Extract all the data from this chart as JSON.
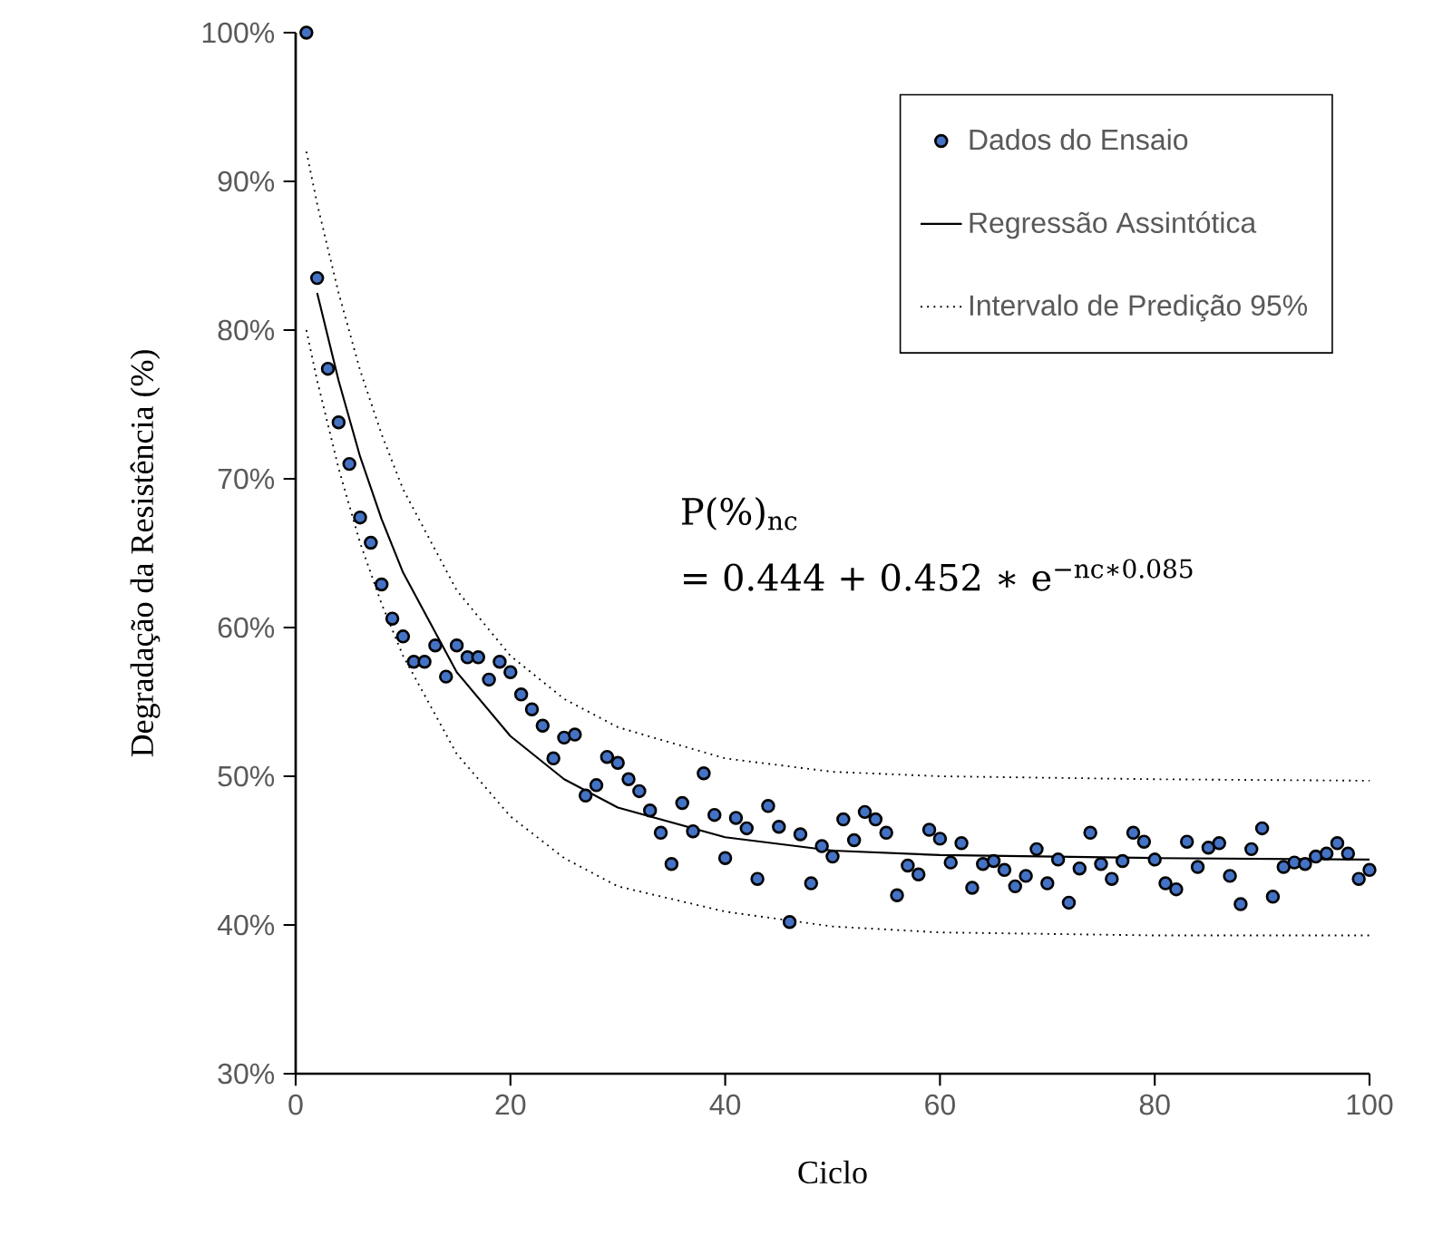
{
  "chart_data": {
    "type": "scatter",
    "xlabel": "Ciclo",
    "ylabel": "Degradação da Resistência (%)",
    "xlim": [
      0,
      100
    ],
    "xticks": [
      0,
      20,
      40,
      60,
      80,
      100
    ],
    "ylim": [
      30,
      100
    ],
    "yticks": [
      {
        "value": 30,
        "label": "30%"
      },
      {
        "value": 40,
        "label": "40%"
      },
      {
        "value": 50,
        "label": "50%"
      },
      {
        "value": 60,
        "label": "60%"
      },
      {
        "value": 70,
        "label": "70%"
      },
      {
        "value": 80,
        "label": "80%"
      },
      {
        "value": 90,
        "label": "90%"
      },
      {
        "value": 100,
        "label": "100%"
      }
    ],
    "legend": "top right",
    "grid": false,
    "annotations": [
      "P(%)$_{nc}$",
      "= 0.444 + 0.452 ∗ e$^{−nc∗0.085}$"
    ],
    "series": [
      {
        "name": "Dados do Ensaio",
        "type": "scatter",
        "color": "#4472c4",
        "marker": "circle",
        "x": [
          1,
          2,
          3,
          4,
          5,
          6,
          7,
          8,
          9,
          10,
          11,
          12,
          13,
          14,
          15,
          16,
          17,
          18,
          19,
          20,
          21,
          22,
          23,
          24,
          25,
          26,
          27,
          28,
          29,
          30,
          31,
          32,
          33,
          34,
          35,
          36,
          37,
          38,
          39,
          40,
          41,
          42,
          43,
          44,
          45,
          46,
          47,
          48,
          49,
          50,
          51,
          52,
          53,
          54,
          55,
          56,
          57,
          58,
          59,
          60,
          61,
          62,
          63,
          64,
          65,
          66,
          67,
          68,
          69,
          70,
          71,
          72,
          73,
          74,
          75,
          76,
          77,
          78,
          79,
          80,
          81,
          82,
          83,
          84,
          85,
          86,
          87,
          88,
          89,
          90,
          91,
          92,
          93,
          94,
          95,
          96,
          97,
          98,
          99,
          100
        ],
        "values": [
          100,
          83.5,
          77.4,
          73.8,
          71.0,
          67.4,
          65.7,
          62.9,
          60.6,
          59.4,
          57.7,
          57.7,
          58.8,
          56.7,
          58.8,
          58.0,
          58.0,
          56.5,
          57.7,
          57.0,
          55.5,
          54.5,
          53.4,
          51.2,
          52.6,
          52.8,
          48.7,
          49.4,
          51.3,
          50.9,
          49.8,
          49.0,
          47.7,
          46.2,
          44.1,
          48.2,
          46.3,
          50.2,
          47.4,
          44.5,
          47.2,
          46.5,
          43.1,
          48.0,
          46.6,
          40.2,
          46.1,
          42.8,
          45.3,
          44.6,
          47.1,
          45.7,
          47.6,
          47.1,
          46.2,
          42.0,
          44.0,
          43.4,
          46.4,
          45.8,
          44.2,
          45.5,
          42.5,
          44.1,
          44.3,
          43.7,
          42.6,
          43.3,
          45.1,
          42.8,
          44.4,
          41.5,
          43.8,
          46.2,
          44.1,
          43.1,
          44.3,
          46.2,
          45.6,
          44.4,
          42.8,
          42.4,
          45.6,
          43.9,
          45.2,
          45.5,
          43.3,
          41.4,
          45.1,
          46.5,
          41.9,
          43.9,
          44.2,
          44.1,
          44.6,
          44.8,
          45.5,
          44.8,
          43.1,
          43.7
        ]
      },
      {
        "name": "Regressão Assintótica",
        "type": "line",
        "color": "#000000",
        "marker": "none",
        "line_style": "solid",
        "x": [
          2,
          4,
          6,
          8,
          10,
          15,
          20,
          25,
          30,
          40,
          50,
          60,
          80,
          100
        ],
        "values": [
          82.5,
          76.6,
          71.5,
          67.3,
          63.7,
          57.0,
          52.7,
          49.8,
          47.9,
          45.9,
          45.0,
          44.7,
          44.5,
          44.4
        ]
      },
      {
        "name": "Intervalo de Predição 95%",
        "type": "line",
        "color": "#000000",
        "marker": "none",
        "line_style": "dotted",
        "x": [
          1,
          2,
          4,
          6,
          8,
          10,
          15,
          20,
          25,
          30,
          40,
          50,
          60,
          80,
          100
        ],
        "values": [
          92.0,
          88.5,
          82.5,
          77.3,
          73.0,
          69.3,
          62.5,
          58.1,
          55.2,
          53.3,
          51.2,
          50.3,
          50.0,
          49.8,
          49.7
        ]
      },
      {
        "type": "line",
        "color": "#000000",
        "marker": "none",
        "line_style": "dotted",
        "x": [
          1,
          2,
          4,
          6,
          8,
          10,
          15,
          20,
          25,
          30,
          40,
          50,
          60,
          80,
          100
        ],
        "values": [
          80.0,
          76.6,
          70.7,
          65.7,
          61.6,
          58.1,
          51.5,
          47.3,
          44.5,
          42.6,
          40.9,
          39.9,
          39.5,
          39.3,
          39.3
        ]
      }
    ]
  }
}
